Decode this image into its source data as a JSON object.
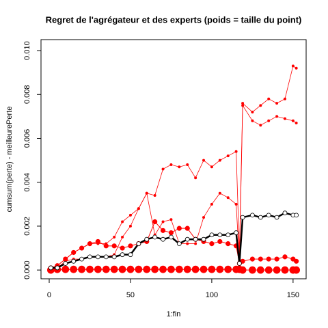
{
  "chart_data": {
    "type": "line",
    "title": "Regret de l'agrégateur et des experts (poids = taille du point)",
    "xlabel": "1:fin",
    "ylabel": "cumsum(perte) - meilleurePerte",
    "x": [
      1,
      5,
      10,
      15,
      20,
      25,
      30,
      35,
      40,
      45,
      50,
      55,
      60,
      65,
      70,
      75,
      80,
      85,
      90,
      95,
      100,
      105,
      110,
      115,
      117,
      119,
      125,
      130,
      135,
      140,
      145,
      150,
      152
    ],
    "series": [
      {
        "color": "#ff0000",
        "values": [
          0.0001,
          0.0002,
          0.0005,
          0.0008,
          0.001,
          0.0012,
          0.0012,
          0.0012,
          0.0015,
          0.0022,
          0.0025,
          0.0028,
          0.0035,
          0.0034,
          0.0046,
          0.0048,
          0.0047,
          0.0048,
          0.0042,
          0.005,
          0.0047,
          0.005,
          0.0052,
          0.0054,
          0.0008,
          0.0076,
          0.0072,
          0.0075,
          0.0078,
          0.0076,
          0.0078,
          0.0093,
          0.0092
        ]
      },
      {
        "color": "#ff0000",
        "values": [
          0.0001,
          0.0001,
          0.0004,
          0.0005,
          0.0005,
          0.0006,
          0.0006,
          0.0006,
          0.0007,
          0.0015,
          0.002,
          0.0028,
          0.0035,
          0.0016,
          0.0022,
          0.0023,
          0.0012,
          0.0012,
          0.0012,
          0.0024,
          0.003,
          0.0035,
          0.0033,
          0.003,
          0.0004,
          0.0075,
          0.0068,
          0.0066,
          0.0068,
          0.007,
          0.0069,
          0.0068,
          0.0067
        ]
      },
      {
        "color": "#ff0000",
        "values": [
          0.0001,
          0.0002,
          0.0005,
          0.0008,
          0.001,
          0.0012,
          0.0013,
          0.0011,
          0.0011,
          0.001,
          0.0011,
          0.0012,
          0.0013,
          0.0022,
          0.0018,
          0.0017,
          0.0019,
          0.0019,
          0.0014,
          0.0013,
          0.0012,
          0.0013,
          0.0012,
          0.0011,
          0.0003,
          0.0004,
          0.0005,
          0.0005,
          0.0005,
          0.0005,
          0.0006,
          0.0005,
          0.0004
        ]
      },
      {
        "color": "#ff0000",
        "values": [
          0,
          3e-05,
          3e-05,
          3e-05,
          3e-05,
          3e-05,
          3e-05,
          3e-05,
          3e-05,
          3e-05,
          3e-05,
          3e-05,
          3e-05,
          3e-05,
          3e-05,
          3e-05,
          3e-05,
          3e-05,
          3e-05,
          3e-05,
          3e-05,
          3e-05,
          3e-05,
          3e-05,
          3e-05,
          0,
          0,
          0,
          0,
          0,
          0,
          0,
          0
        ]
      },
      {
        "color": "#000000",
        "values": [
          0.0001,
          0.0001,
          0.0003,
          0.0004,
          0.0005,
          0.0006,
          0.0006,
          0.0006,
          0.0006,
          0.0007,
          0.0007,
          0.0012,
          0.0014,
          0.0015,
          0.0014,
          0.0015,
          0.0012,
          0.0014,
          0.0014,
          0.0014,
          0.0016,
          0.0016,
          0.0016,
          0.0017,
          0.0003,
          0.0024,
          0.0025,
          0.0024,
          0.0025,
          0.0024,
          0.0026,
          0.0025,
          0.0025
        ]
      }
    ],
    "xlim": [
      -5.04,
      158.04
    ],
    "xticks": [
      0,
      50,
      100,
      150
    ],
    "ylim": [
      -0.0004,
      0.0105
    ],
    "yticks": [
      {
        "value": 0,
        "label": "0.000"
      },
      {
        "value": 0.002,
        "label": "0.002"
      },
      {
        "value": 0.004,
        "label": "0.004"
      },
      {
        "value": 0.006,
        "label": "0.006"
      },
      {
        "value": 0.008,
        "label": "0.008"
      },
      {
        "value": 0.01,
        "label": "0.010"
      }
    ]
  }
}
